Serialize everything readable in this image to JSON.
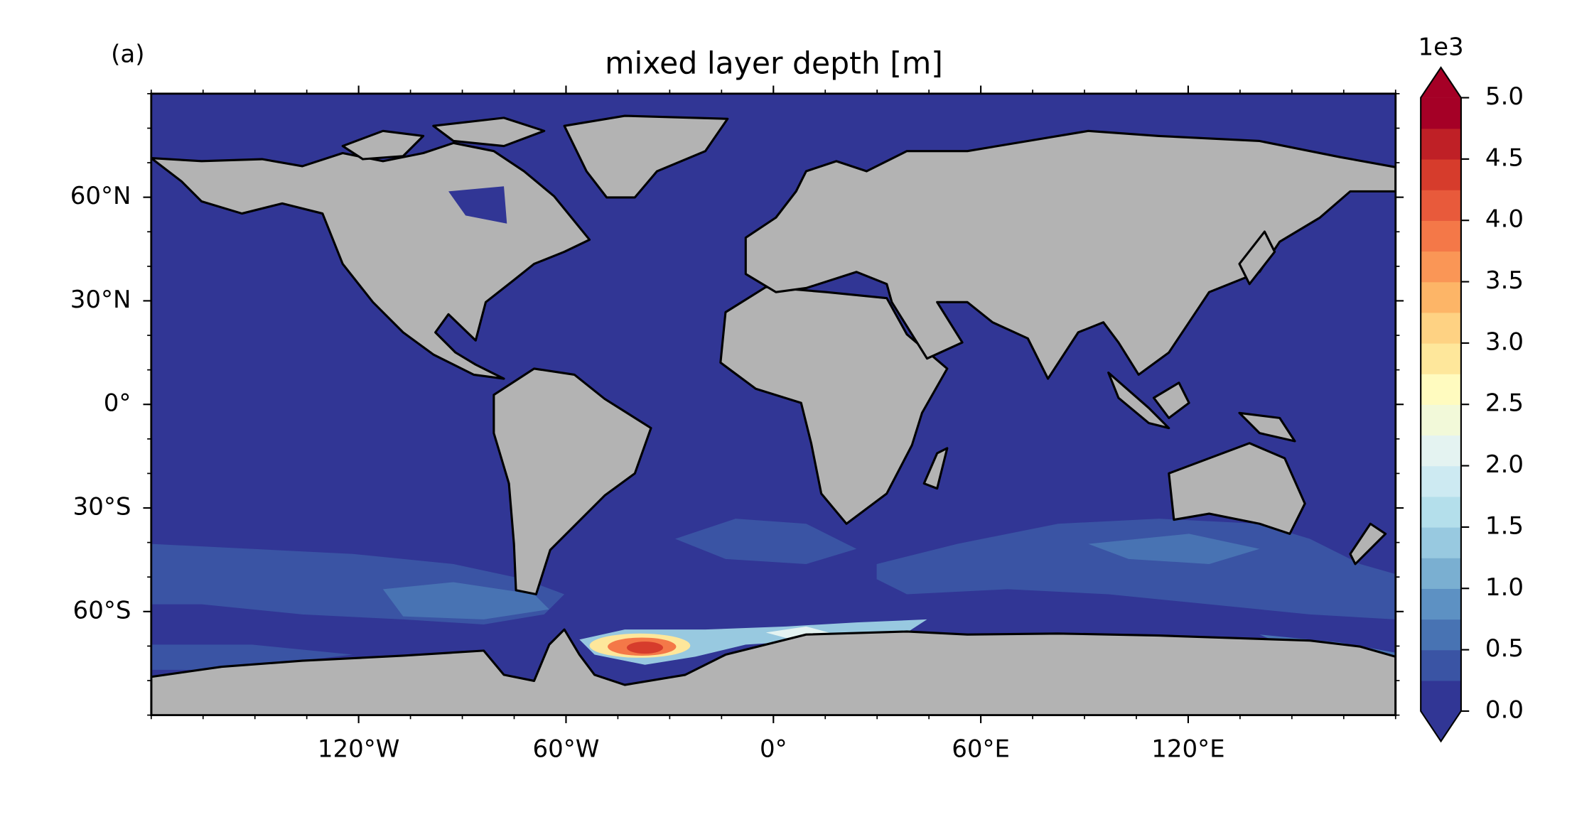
{
  "panel_label": "(a)",
  "chart_data": {
    "type": "map",
    "title": "mixed layer depth [m]",
    "xlim": [
      -180,
      180
    ],
    "ylim": [
      -90,
      90
    ],
    "xticks": [
      {
        "value": -120,
        "label": "120°W"
      },
      {
        "value": -60,
        "label": "60°W"
      },
      {
        "value": 0,
        "label": "0°"
      },
      {
        "value": 60,
        "label": "60°E"
      },
      {
        "value": 120,
        "label": "120°E"
      }
    ],
    "yticks": [
      {
        "value": -60,
        "label": "60°S"
      },
      {
        "value": -30,
        "label": "30°S"
      },
      {
        "value": 0,
        "label": "0°"
      },
      {
        "value": 30,
        "label": "30°N"
      },
      {
        "value": 60,
        "label": "60°N"
      }
    ],
    "land_color": "#b3b3b3",
    "ocean_color": "#313695",
    "colorbar": {
      "label": "1e3",
      "lim": [
        0,
        5
      ],
      "ticks": [
        {
          "value": 0,
          "label": "0.0"
        },
        0.5,
        {
          "value": 1,
          "label": "1.0"
        },
        1.5,
        {
          "value": 2,
          "label": "2.0"
        },
        2.5,
        {
          "value": 3,
          "label": "3.0"
        },
        3.5,
        {
          "value": 4,
          "label": "4.0"
        },
        4.5,
        {
          "value": 5,
          "label": "5.0"
        }
      ],
      "colors": [
        "#313695",
        "#3a54a4",
        "#4873b3",
        "#5d91c3",
        "#7aafd1",
        "#98c9e0",
        "#b4dfeb",
        "#cdeaf2",
        "#e4f3f1",
        "#f2f9d9",
        "#fffbbf",
        "#fee79b",
        "#fed283",
        "#fdb567",
        "#fa9656",
        "#f47848",
        "#e85a3b",
        "#d63c2c",
        "#bf2026",
        "#a50026"
      ],
      "extend": "both"
    }
  }
}
